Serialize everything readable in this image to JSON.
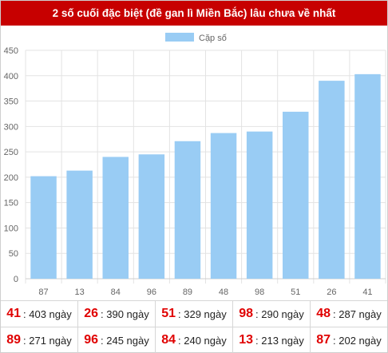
{
  "header": {
    "title": "2 số cuối đặc biệt (đề gan lì Miền Bắc) lâu chưa về nhất"
  },
  "chart_data": {
    "type": "bar",
    "title": "",
    "categories": [
      "87",
      "13",
      "84",
      "96",
      "89",
      "48",
      "98",
      "51",
      "26",
      "41"
    ],
    "series": [
      {
        "name": "Cặp số",
        "values": [
          202,
          213,
          240,
          245,
          271,
          287,
          290,
          329,
          390,
          403
        ],
        "color": "#99ccf4"
      }
    ],
    "ylim": [
      0,
      450
    ],
    "yticks": [
      0,
      50,
      100,
      150,
      200,
      250,
      300,
      350,
      400,
      450
    ],
    "grid": true,
    "legend": "top-center",
    "xlabel": "",
    "ylabel": ""
  },
  "table": {
    "suffix": "ngày",
    "rows": [
      [
        {
          "num": "41",
          "days": 403
        },
        {
          "num": "26",
          "days": 390
        },
        {
          "num": "51",
          "days": 329
        },
        {
          "num": "98",
          "days": 290
        },
        {
          "num": "48",
          "days": 287
        }
      ],
      [
        {
          "num": "89",
          "days": 271
        },
        {
          "num": "96",
          "days": 245
        },
        {
          "num": "84",
          "days": 240
        },
        {
          "num": "13",
          "days": 213
        },
        {
          "num": "87",
          "days": 202
        }
      ]
    ]
  }
}
